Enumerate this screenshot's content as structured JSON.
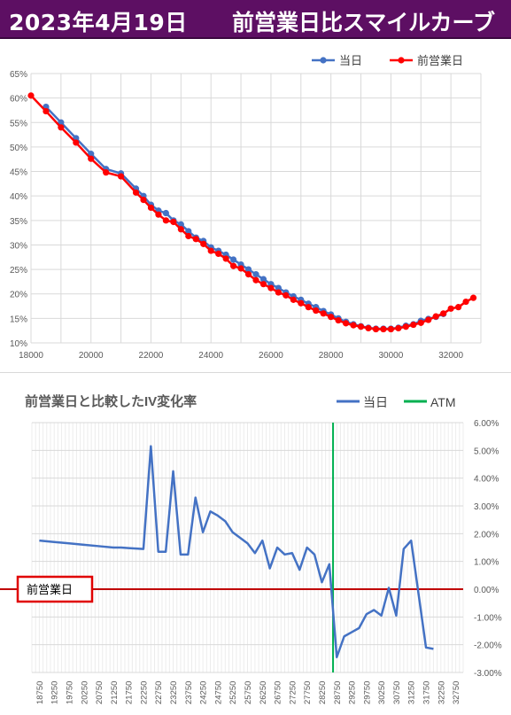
{
  "header": {
    "date": "2023年4月19日",
    "title": "前営業日比スマイルカーブ"
  },
  "colors": {
    "header_bg": "#5d0f63",
    "today": "#4472c4",
    "prev": "#ff0000",
    "atm": "#00b050",
    "zero": "#c00000"
  },
  "chart_data": [
    {
      "type": "line",
      "title": "",
      "xlim": [
        18000,
        33000
      ],
      "ylim": [
        10,
        65
      ],
      "x_ticks": [
        "18000",
        "20000",
        "22000",
        "24000",
        "26000",
        "28000",
        "30000",
        "32000"
      ],
      "y_ticks": [
        "10%",
        "15%",
        "20%",
        "25%",
        "30%",
        "35%",
        "40%",
        "45%",
        "50%",
        "55%",
        "60%",
        "65%"
      ],
      "legend_position": "top-right",
      "series": [
        {
          "name": "当日",
          "color": "#4472c4",
          "points": [
            [
              18500,
              58.2
            ],
            [
              19000,
              55.0
            ],
            [
              19500,
              51.8
            ],
            [
              20000,
              48.6
            ],
            [
              20500,
              45.5
            ],
            [
              21000,
              44.6
            ],
            [
              21500,
              41.5
            ],
            [
              21750,
              40.0
            ],
            [
              22000,
              38.2
            ],
            [
              22250,
              37.0
            ],
            [
              22500,
              36.5
            ],
            [
              22750,
              35.0
            ],
            [
              23000,
              34.2
            ],
            [
              23250,
              32.8
            ],
            [
              23500,
              31.5
            ],
            [
              23750,
              30.8
            ],
            [
              24000,
              29.5
            ],
            [
              24250,
              28.8
            ],
            [
              24500,
              28.0
            ],
            [
              24750,
              27.0
            ],
            [
              25000,
              26.0
            ],
            [
              25250,
              25.0
            ],
            [
              25500,
              24.0
            ],
            [
              25750,
              23.0
            ],
            [
              26000,
              22.0
            ],
            [
              26250,
              21.2
            ],
            [
              26500,
              20.3
            ],
            [
              26750,
              19.5
            ],
            [
              27000,
              18.8
            ],
            [
              27250,
              18.0
            ],
            [
              27500,
              17.3
            ],
            [
              27750,
              16.5
            ],
            [
              28000,
              15.8
            ],
            [
              28250,
              15.0
            ],
            [
              28500,
              14.3
            ],
            [
              28750,
              13.8
            ],
            [
              29000,
              13.4
            ],
            [
              29250,
              13.1
            ],
            [
              29500,
              12.9
            ],
            [
              29750,
              12.9
            ],
            [
              30000,
              12.9
            ],
            [
              30250,
              13.1
            ],
            [
              30500,
              13.5
            ],
            [
              30750,
              13.8
            ],
            [
              31000,
              14.5
            ],
            [
              31250,
              14.9
            ],
            [
              31500,
              15.3
            ],
            [
              31750,
              15.9
            ]
          ]
        },
        {
          "name": "前営業日",
          "color": "#ff0000",
          "points": [
            [
              18000,
              60.5
            ],
            [
              18500,
              57.3
            ],
            [
              19000,
              54.0
            ],
            [
              19500,
              50.9
            ],
            [
              20000,
              47.6
            ],
            [
              20500,
              44.8
            ],
            [
              21000,
              44.0
            ],
            [
              21500,
              40.7
            ],
            [
              21750,
              39.2
            ],
            [
              22000,
              37.6
            ],
            [
              22250,
              36.2
            ],
            [
              22500,
              35.0
            ],
            [
              22750,
              34.7
            ],
            [
              23000,
              33.2
            ],
            [
              23250,
              31.8
            ],
            [
              23500,
              31.2
            ],
            [
              23750,
              30.2
            ],
            [
              24000,
              28.8
            ],
            [
              24250,
              28.2
            ],
            [
              24500,
              27.2
            ],
            [
              24750,
              25.7
            ],
            [
              25000,
              25.2
            ],
            [
              25250,
              24.0
            ],
            [
              25500,
              22.8
            ],
            [
              25750,
              22.0
            ],
            [
              26000,
              21.2
            ],
            [
              26250,
              20.3
            ],
            [
              26500,
              19.7
            ],
            [
              26750,
              18.8
            ],
            [
              27000,
              18.1
            ],
            [
              27250,
              17.3
            ],
            [
              27500,
              16.6
            ],
            [
              27750,
              16.0
            ],
            [
              28000,
              15.3
            ],
            [
              28250,
              14.6
            ],
            [
              28500,
              14.0
            ],
            [
              28750,
              13.6
            ],
            [
              29000,
              13.3
            ],
            [
              29250,
              13.0
            ],
            [
              29500,
              12.8
            ],
            [
              29750,
              12.8
            ],
            [
              30000,
              12.8
            ],
            [
              30250,
              13.0
            ],
            [
              30500,
              13.3
            ],
            [
              30750,
              13.7
            ],
            [
              31000,
              14.1
            ],
            [
              31250,
              14.7
            ],
            [
              31500,
              15.4
            ],
            [
              31750,
              16.0
            ],
            [
              32000,
              17.0
            ],
            [
              32250,
              17.3
            ],
            [
              32500,
              18.4
            ],
            [
              32750,
              19.2
            ]
          ]
        }
      ]
    },
    {
      "type": "line",
      "title": "前営業日と比較したIV変化率",
      "ylim": [
        -3,
        6
      ],
      "y_ticks": [
        "6.00%",
        "5.00%",
        "4.00%",
        "3.00%",
        "2.00%",
        "1.00%",
        "0.00%",
        "-1.00%",
        "-2.00%",
        "-3.00%"
      ],
      "categories": [
        "18750",
        "19250",
        "19750",
        "20250",
        "20750",
        "21250",
        "21750",
        "22250",
        "22750",
        "23250",
        "23750",
        "24250",
        "24750",
        "25250",
        "25750",
        "26250",
        "26750",
        "27250",
        "27750",
        "28250",
        "28750",
        "29250",
        "29750",
        "30250",
        "30750",
        "31250",
        "31750",
        "32250",
        "32750"
      ],
      "cat_start": 18750,
      "cat_step": 500,
      "legend_position": "top-right",
      "series": [
        {
          "name": "当日",
          "color": "#4472c4",
          "points": [
            [
              18750,
              1.75
            ],
            [
              19250,
              1.7
            ],
            [
              19750,
              1.65
            ],
            [
              20250,
              1.6
            ],
            [
              20750,
              1.55
            ],
            [
              21250,
              1.5
            ],
            [
              21500,
              1.5
            ],
            [
              21750,
              1.48
            ],
            [
              22250,
              1.45
            ],
            [
              22500,
              5.15
            ],
            [
              22750,
              1.35
            ],
            [
              23000,
              1.35
            ],
            [
              23250,
              4.25
            ],
            [
              23500,
              1.25
            ],
            [
              23750,
              1.25
            ],
            [
              24000,
              3.3
            ],
            [
              24250,
              2.05
            ],
            [
              24500,
              2.8
            ],
            [
              24750,
              2.65
            ],
            [
              25000,
              2.45
            ],
            [
              25250,
              2.05
            ],
            [
              25500,
              1.85
            ],
            [
              25750,
              1.65
            ],
            [
              26000,
              1.3
            ],
            [
              26250,
              1.75
            ],
            [
              26500,
              0.75
            ],
            [
              26750,
              1.5
            ],
            [
              27000,
              1.25
            ],
            [
              27250,
              1.3
            ],
            [
              27500,
              0.7
            ],
            [
              27750,
              1.5
            ],
            [
              28000,
              1.25
            ],
            [
              28250,
              0.25
            ],
            [
              28500,
              0.9
            ],
            [
              28750,
              -2.45
            ],
            [
              29000,
              -1.7
            ],
            [
              29250,
              -1.55
            ],
            [
              29500,
              -1.4
            ],
            [
              29750,
              -0.9
            ],
            [
              30000,
              -0.75
            ],
            [
              30250,
              -0.95
            ],
            [
              30500,
              0.05
            ],
            [
              30750,
              -0.95
            ],
            [
              31000,
              1.45
            ],
            [
              31250,
              1.75
            ],
            [
              31750,
              -2.1
            ],
            [
              32000,
              -2.15
            ]
          ]
        },
        {
          "name": "ATM",
          "color": "#00b050",
          "atm_x": 28625
        }
      ],
      "annotation": "前営業日"
    }
  ]
}
